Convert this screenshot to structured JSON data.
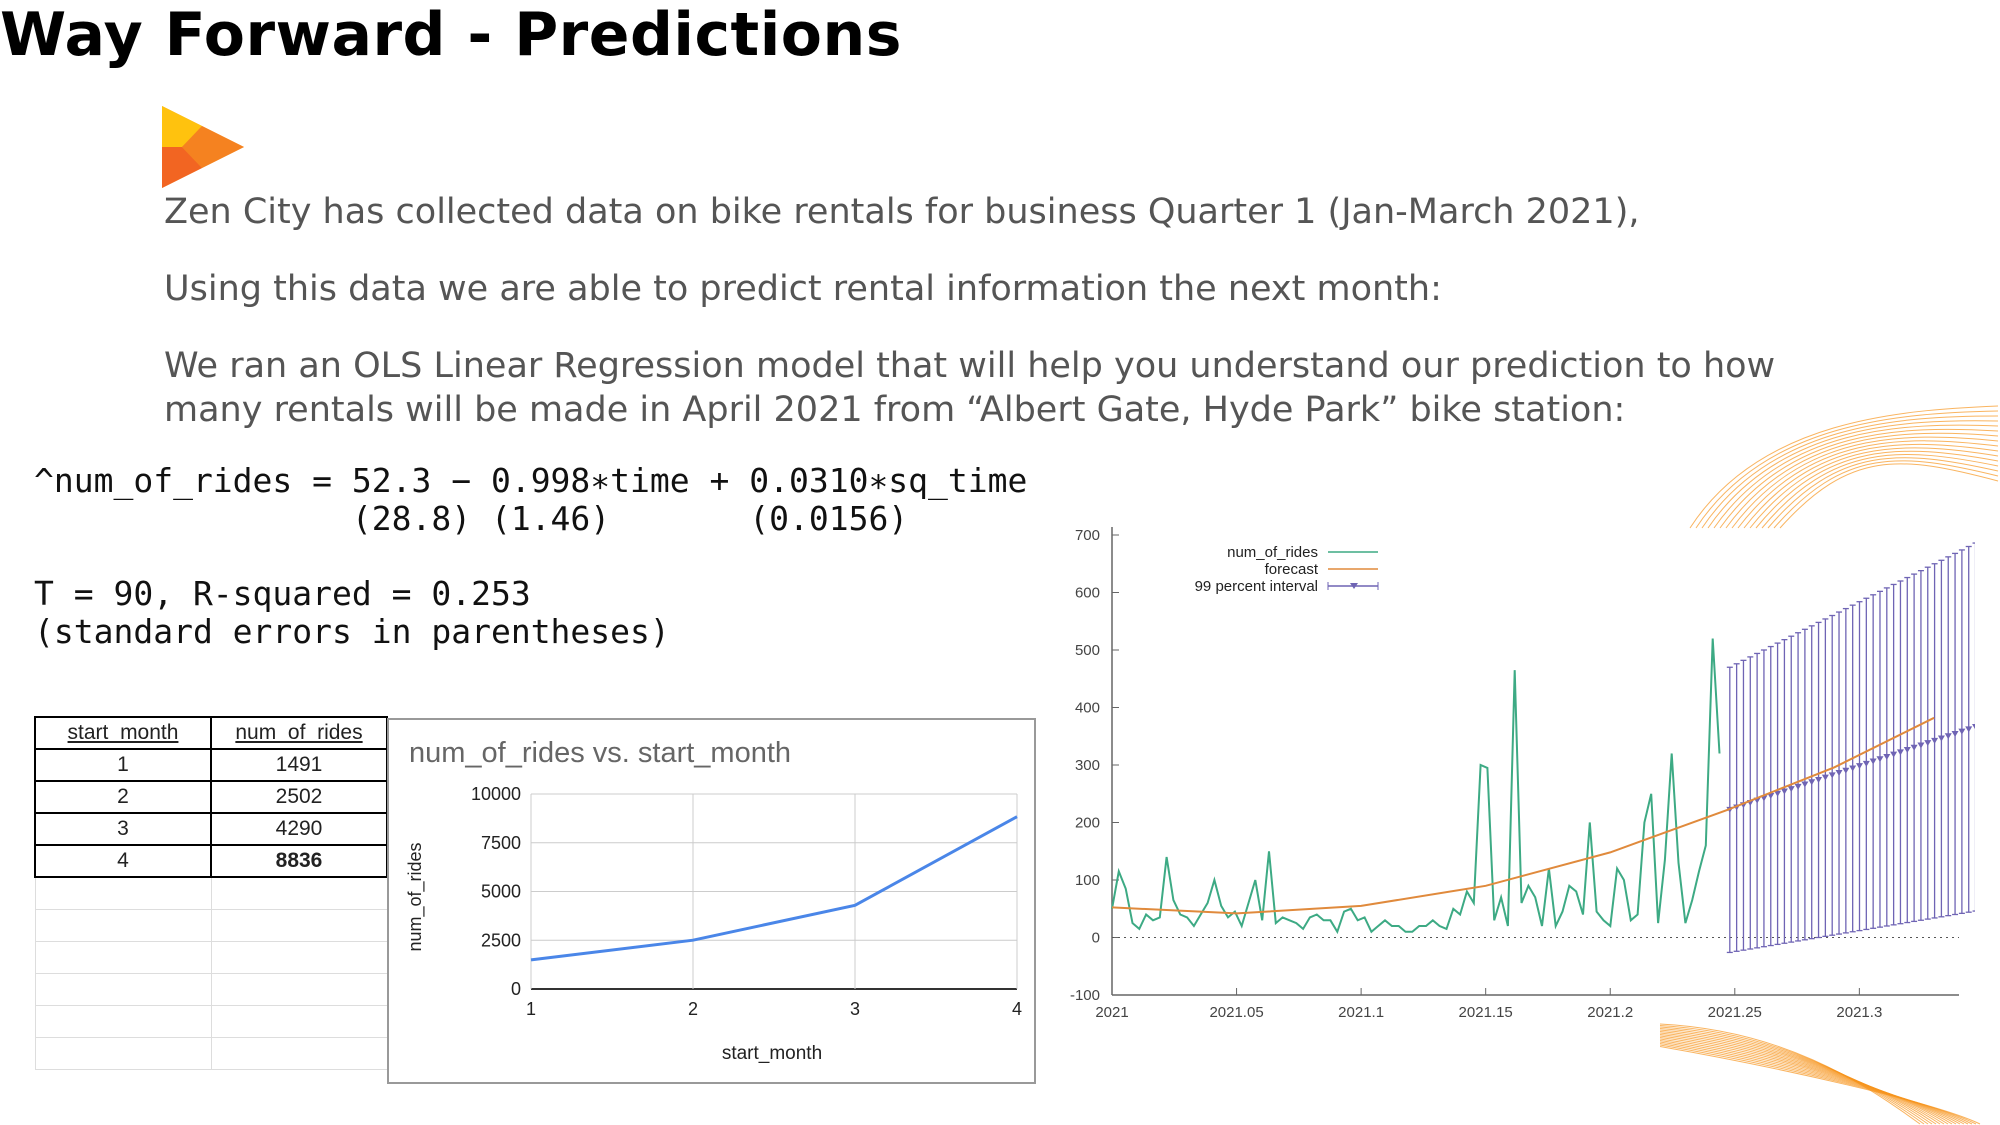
{
  "slide": {
    "title": "Way Forward - Predictions",
    "paragraph1": "Zen City has collected data on bike rentals for business Quarter 1 (Jan-March 2021),",
    "paragraph2": "Using this data we are able to predict rental information the next month:",
    "paragraph3_line1": "We ran an OLS Linear Regression model that will help you understand our prediction to how",
    "paragraph3_line2": "many rentals will be made in April 2021 from “Albert Gate, Hyde Park” bike station:",
    "logo_icon": "play-arrow-logo-icon",
    "accent_color": "#F7941D"
  },
  "regression": {
    "line1": "^num_of_rides = 52.3 − 0.998∗time + 0.0310∗sq_time",
    "line2": "                (28.8) (1.46)       (0.0156)",
    "line3": "T = 90, R-squared = 0.253",
    "line4": "(standard errors in parentheses)"
  },
  "table": {
    "headers": [
      "start_month",
      "num_of_rides"
    ],
    "rows": [
      [
        "1",
        "1491"
      ],
      [
        "2",
        "2502"
      ],
      [
        "3",
        "4290"
      ],
      [
        "4",
        "8836"
      ]
    ]
  },
  "chart_data": [
    {
      "type": "line",
      "title": "num_of_rides vs. start_month",
      "xlabel": "start_month",
      "ylabel": "num_of_rides",
      "x": [
        1,
        2,
        3,
        4
      ],
      "values": [
        1491,
        2502,
        4290,
        8836
      ],
      "xlim": [
        1,
        4
      ],
      "ylim": [
        0,
        10000
      ],
      "yticks": [
        "0",
        "2500",
        "5000",
        "7500",
        "10000"
      ],
      "xticks": [
        "1",
        "2",
        "3",
        "4"
      ],
      "color": "#4A86E8",
      "grid": true
    },
    {
      "type": "line",
      "title": "",
      "xlabel": "",
      "ylabel": "",
      "xlim": [
        2021,
        2021.34
      ],
      "ylim": [
        -100,
        700
      ],
      "xticks": [
        "2021",
        "2021.05",
        "2021.1",
        "2021.15",
        "2021.2",
        "2021.25",
        "2021.3"
      ],
      "yticks": [
        "-100",
        "0",
        "100",
        "200",
        "300",
        "400",
        "500",
        "600",
        "700"
      ],
      "legend": [
        "num_of_rides",
        "forecast",
        "99 percent interval"
      ],
      "legend_position": "top-left",
      "colors": {
        "num_of_rides": "#3DAA84",
        "forecast": "#E08A3C",
        "interval": "#6F64B4"
      },
      "series": [
        {
          "name": "num_of_rides",
          "x_start": 2021.0,
          "x_step": 0.00274,
          "values": [
            50,
            115,
            85,
            25,
            15,
            40,
            30,
            35,
            140,
            65,
            40,
            35,
            20,
            40,
            60,
            100,
            55,
            35,
            45,
            20,
            60,
            100,
            30,
            150,
            25,
            35,
            30,
            25,
            15,
            35,
            40,
            30,
            30,
            10,
            45,
            50,
            30,
            35,
            10,
            20,
            30,
            20,
            20,
            10,
            10,
            20,
            20,
            30,
            20,
            15,
            50,
            40,
            80,
            60,
            300,
            295,
            30,
            70,
            20,
            465,
            60,
            90,
            70,
            20,
            120,
            20,
            45,
            90,
            80,
            40,
            200,
            45,
            30,
            20,
            120,
            100,
            30,
            40,
            200,
            250,
            25,
            135,
            320,
            130,
            25,
            65,
            115,
            160,
            520,
            320
          ]
        },
        {
          "name": "forecast",
          "x": [
            2021.0,
            2021.05,
            2021.1,
            2021.15,
            2021.2,
            2021.247,
            2021.29,
            2021.33
          ],
          "values": [
            52.3,
            42,
            55,
            90,
            148,
            222,
            296,
            382
          ]
        },
        {
          "name": "99 percent interval",
          "x_start": 2021.248,
          "x_step": 0.00274,
          "center": [
            222,
            226,
            230,
            234,
            238,
            242,
            246,
            250,
            254,
            258,
            262,
            266,
            270,
            274,
            278,
            282,
            286,
            290,
            294,
            298,
            302,
            306,
            310,
            314,
            318,
            322,
            326,
            330,
            334,
            338,
            342,
            346,
            350,
            354,
            358,
            362,
            366,
            370,
            374,
            378,
            382
          ],
          "half_width": [
            248,
            250,
            252,
            254,
            256,
            258,
            260,
            262,
            264,
            266,
            268,
            270,
            272,
            274,
            276,
            278,
            280,
            282,
            284,
            286,
            288,
            290,
            292,
            294,
            296,
            298,
            300,
            302,
            304,
            306,
            308,
            310,
            312,
            314,
            316,
            318,
            320,
            322,
            324,
            326,
            328
          ]
        }
      ]
    }
  ]
}
